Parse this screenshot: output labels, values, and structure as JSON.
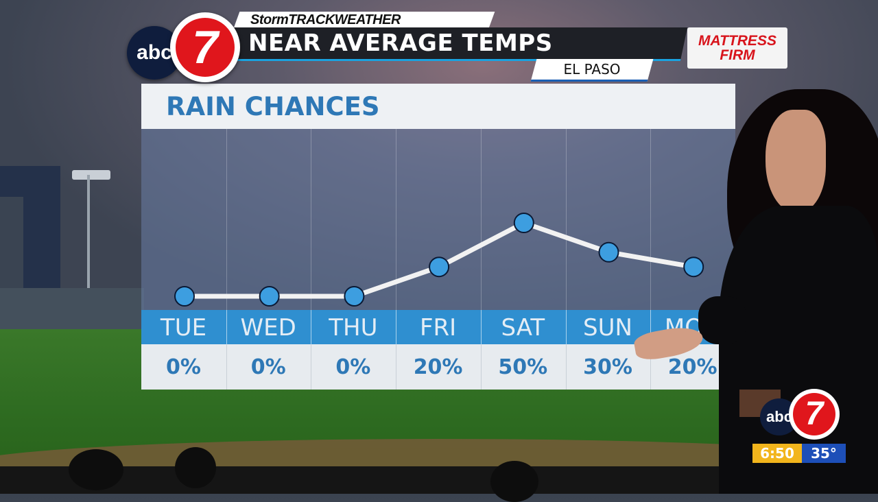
{
  "header": {
    "station_logo_abc": "abc",
    "station_logo_number": "7",
    "brand": "StormTRACKWEATHER",
    "headline": "NEAR AVERAGE TEMPS",
    "location": "EL PASO",
    "sponsor": "MATTRESS FIRM"
  },
  "panel": {
    "title": "RAIN CHANCES"
  },
  "chart_data": {
    "type": "line",
    "title": "RAIN CHANCES",
    "categories": [
      "TUE",
      "WED",
      "THU",
      "FRI",
      "SAT",
      "SUN",
      "MON"
    ],
    "series": [
      {
        "values": [
          0,
          0,
          0,
          20,
          50,
          30,
          20
        ]
      }
    ],
    "value_labels": [
      "0%",
      "0%",
      "0%",
      "20%",
      "50%",
      "30%",
      "20%"
    ],
    "ylim": [
      0,
      50
    ],
    "grid": false,
    "colors": {
      "line": "#f2f2f2",
      "marker": "#3d9ee0",
      "marker_stroke": "#0b1a35"
    }
  },
  "bug": {
    "logo_abc": "abc",
    "logo_number": "7",
    "time": "6:50",
    "temperature": "35°"
  },
  "colors": {
    "headline_bg": "#1e2026",
    "accent_blue": "#1aa3e0",
    "title_text": "#2e78b6",
    "day_row_bg": "#2f8fd0",
    "bug_time_bg": "#f2b51c",
    "bug_temp_bg": "#1d4fb8",
    "logo_red": "#e0161c"
  }
}
